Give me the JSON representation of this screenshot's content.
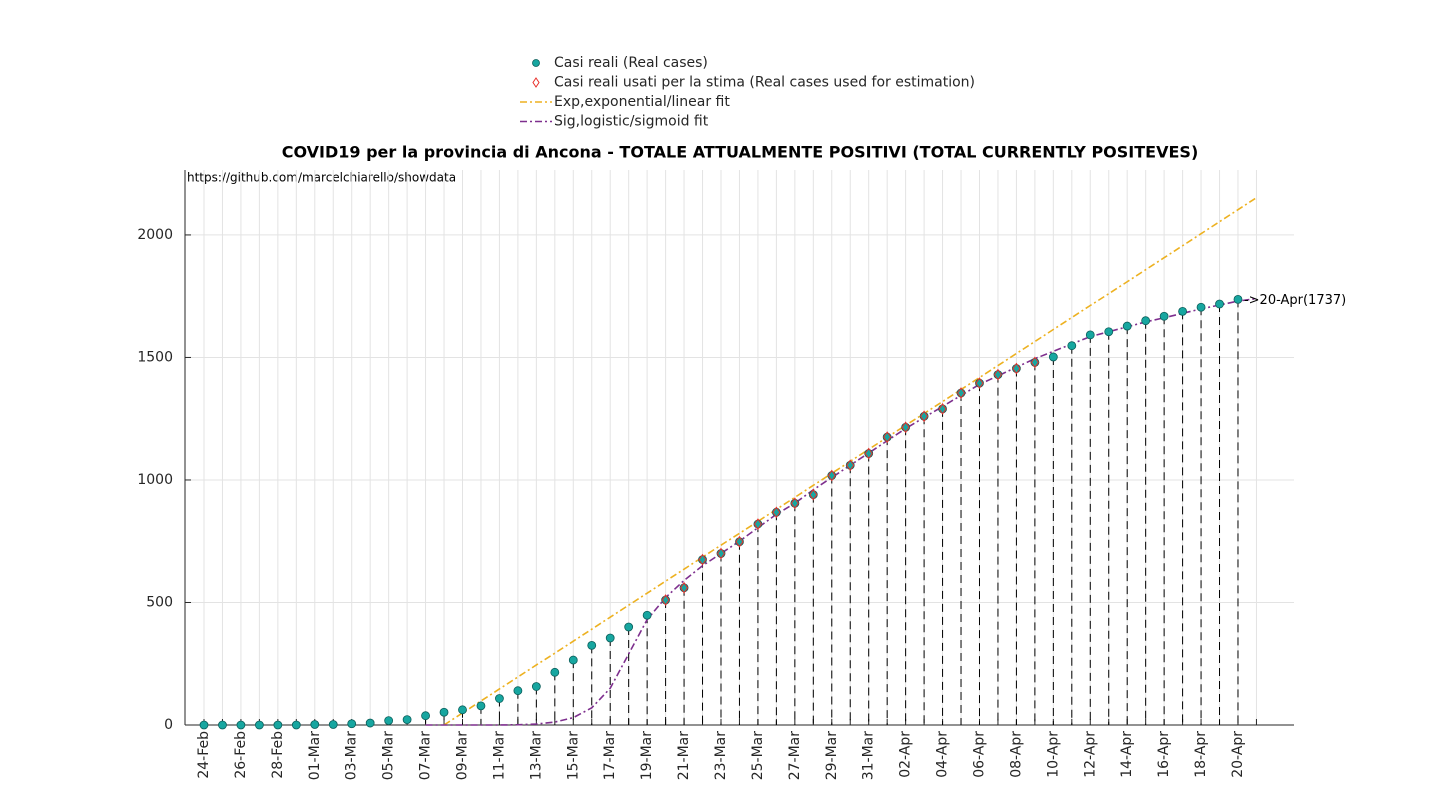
{
  "chart_data": {
    "type": "line",
    "title": "COVID19 per la provincia di Ancona - TOTALE ATTUALMENTE POSITIVI (TOTAL CURRENTLY POSITEVES)",
    "source": "https://github.com/marcelchiarello/showdata",
    "annotation": "->20-Apr(1737)",
    "categories": [
      "24-Feb",
      null,
      "26-Feb",
      null,
      "28-Feb",
      null,
      "01-Mar",
      null,
      "03-Mar",
      null,
      "05-Mar",
      null,
      "07-Mar",
      null,
      "09-Mar",
      null,
      "11-Mar",
      null,
      "13-Mar",
      null,
      "15-Mar",
      null,
      "17-Mar",
      null,
      "19-Mar",
      null,
      "21-Mar",
      null,
      "23-Mar",
      null,
      "25-Mar",
      null,
      "27-Mar",
      null,
      "29-Mar",
      null,
      "31-Mar",
      null,
      "02-Apr",
      null,
      "04-Apr",
      null,
      "06-Apr",
      null,
      "08-Apr",
      null,
      "10-Apr",
      null,
      "12-Apr",
      null,
      "14-Apr",
      null,
      "16-Apr",
      null,
      "18-Apr",
      null,
      "20-Apr",
      null
    ],
    "series": [
      {
        "name": "Casi reali (Real cases)",
        "color": "#17a6a0",
        "marker": "circle",
        "values": [
          0,
          0,
          0,
          0,
          0,
          0,
          2,
          2,
          5,
          8,
          18,
          22,
          38,
          52,
          62,
          78,
          108,
          140,
          157,
          215,
          265,
          325,
          355,
          400,
          448,
          510,
          560,
          675,
          700,
          748,
          820,
          868,
          905,
          940,
          1018,
          1060,
          1108,
          1175,
          1215,
          1260,
          1290,
          1355,
          1395,
          1430,
          1455,
          1480,
          1502,
          1548,
          1592,
          1605,
          1628,
          1650,
          1668,
          1688,
          1705,
          1718,
          1737,
          null
        ]
      },
      {
        "name": "Casi reali usati per la stima (Real cases used for estimation)",
        "color": "#e8302a",
        "marker": "diamond",
        "values": [
          null,
          null,
          null,
          null,
          null,
          null,
          null,
          null,
          null,
          null,
          null,
          null,
          null,
          null,
          null,
          null,
          null,
          null,
          null,
          null,
          null,
          null,
          null,
          null,
          null,
          510,
          560,
          675,
          700,
          748,
          820,
          868,
          905,
          940,
          1018,
          1060,
          1108,
          1175,
          1215,
          1260,
          1290,
          1355,
          1395,
          1430,
          1455,
          1480,
          null,
          null,
          null,
          null,
          null,
          null,
          null,
          null,
          null,
          null,
          null,
          null
        ]
      },
      {
        "name": "Exp,exponential/linear fit",
        "color": "#edb120",
        "marker": "dashdot",
        "values": [
          null,
          null,
          null,
          null,
          null,
          null,
          null,
          null,
          null,
          null,
          null,
          null,
          null,
          0,
          49,
          98,
          147,
          196,
          245,
          293,
          342,
          391,
          440,
          489,
          538,
          587,
          636,
          685,
          734,
          782,
          831,
          880,
          929,
          978,
          1027,
          1076,
          1125,
          1174,
          1223,
          1271,
          1320,
          1369,
          1418,
          1467,
          1516,
          1565,
          1614,
          1663,
          1712,
          1760,
          1809,
          1858,
          1907,
          1956,
          2005,
          2054,
          2103,
          2152
        ]
      },
      {
        "name": "Sig,logistic/sigmoid fit",
        "color": "#7e2f8e",
        "marker": "dashdot",
        "values": [
          null,
          null,
          null,
          null,
          null,
          null,
          null,
          null,
          null,
          null,
          null,
          null,
          0,
          0,
          0,
          0,
          0,
          1,
          4,
          12,
          30,
          70,
          150,
          290,
          430,
          520,
          590,
          650,
          700,
          750,
          805,
          860,
          905,
          960,
          1010,
          1060,
          1110,
          1160,
          1210,
          1255,
          1300,
          1345,
          1390,
          1425,
          1460,
          1495,
          1525,
          1555,
          1585,
          1605,
          1625,
          1645,
          1662,
          1680,
          1698,
          1714,
          1730,
          1740
        ]
      }
    ],
    "ylim": [
      0,
      2265
    ],
    "yticks": [
      0,
      500,
      1000,
      1500,
      2000
    ],
    "grid": true
  }
}
